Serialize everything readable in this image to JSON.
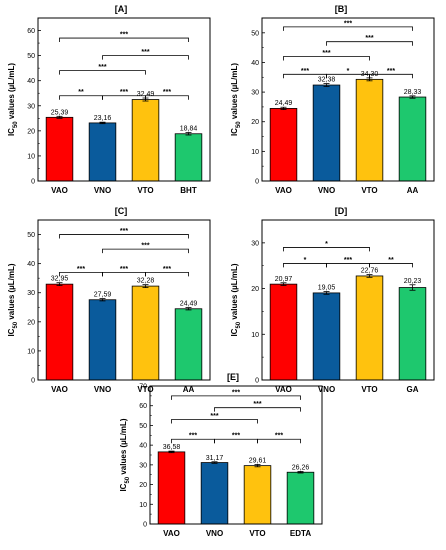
{
  "chart_data": [
    {
      "type": "bar",
      "title": "[A]",
      "ylabel_main": "IC",
      "ylabel_sub": "50",
      "ylabel_rest": " values (µL/mL)",
      "categories": [
        "VAO",
        "VNO",
        "VTO",
        "BHT"
      ],
      "values": [
        25.39,
        23.16,
        32.49,
        18.84
      ],
      "value_labels": [
        "25,39",
        "23,16",
        "32,49",
        "18,84"
      ],
      "errors": [
        0.4,
        0.3,
        0.6,
        0.5
      ],
      "colors": [
        "#ff0000",
        "#0a5b9c",
        "#ffc20e",
        "#1ec86e"
      ],
      "ylim": [
        0,
        65
      ],
      "yticks": [
        "0",
        "10",
        "20",
        "30",
        "40",
        "50",
        "60"
      ],
      "brackets": [
        {
          "from": 0,
          "to": 3,
          "level": 57,
          "label": "***"
        },
        {
          "from": 1,
          "to": 3,
          "level": 50,
          "label": "***"
        },
        {
          "from": 0,
          "to": 2,
          "level": 44,
          "label": "***"
        },
        {
          "from": 0,
          "to": 1,
          "level": 34,
          "label": "**"
        },
        {
          "from": 1,
          "to": 2,
          "level": 34,
          "label": "***"
        },
        {
          "from": 2,
          "to": 3,
          "level": 34,
          "label": "***"
        }
      ]
    },
    {
      "type": "bar",
      "title": "[B]",
      "ylabel_main": "IC",
      "ylabel_sub": "50",
      "ylabel_rest": " values (µL/mL)",
      "categories": [
        "VAO",
        "VNO",
        "VTO",
        "AA"
      ],
      "values": [
        24.49,
        32.38,
        34.3,
        28.33
      ],
      "value_labels": [
        "24,49",
        "32,38",
        "34,30",
        "28,33"
      ],
      "errors": [
        0.4,
        0.5,
        0.5,
        0.4
      ],
      "colors": [
        "#ff0000",
        "#0a5b9c",
        "#ffc20e",
        "#1ec86e"
      ],
      "ylim": [
        0,
        55
      ],
      "yticks": [
        "0",
        "10",
        "20",
        "30",
        "40",
        "50"
      ],
      "brackets": [
        {
          "from": 0,
          "to": 3,
          "level": 52,
          "label": "***"
        },
        {
          "from": 1,
          "to": 3,
          "level": 47,
          "label": "***"
        },
        {
          "from": 0,
          "to": 2,
          "level": 42,
          "label": "***"
        },
        {
          "from": 0,
          "to": 1,
          "level": 36,
          "label": "***"
        },
        {
          "from": 1,
          "to": 2,
          "level": 36,
          "label": "*"
        },
        {
          "from": 2,
          "to": 3,
          "level": 36,
          "label": "***"
        }
      ]
    },
    {
      "type": "bar",
      "title": "[C]",
      "ylabel_main": "IC",
      "ylabel_sub": "50",
      "ylabel_rest": " values (µL/mL)",
      "categories": [
        "VAO",
        "VNO",
        "VTO",
        "AA"
      ],
      "values": [
        32.95,
        27.59,
        32.28,
        24.49
      ],
      "value_labels": [
        "32,95",
        "27,59",
        "32,28",
        "24,49"
      ],
      "errors": [
        0.5,
        0.4,
        0.5,
        0.4
      ],
      "colors": [
        "#ff0000",
        "#0a5b9c",
        "#ffc20e",
        "#1ec86e"
      ],
      "ylim": [
        0,
        55
      ],
      "yticks": [
        "0",
        "10",
        "20",
        "30",
        "40",
        "50"
      ],
      "brackets": [
        {
          "from": 0,
          "to": 3,
          "level": 50,
          "label": "***"
        },
        {
          "from": 1,
          "to": 3,
          "level": 45,
          "label": "***"
        },
        {
          "from": 0,
          "to": 1,
          "level": 37,
          "label": "***"
        },
        {
          "from": 1,
          "to": 2,
          "level": 37,
          "label": "***"
        },
        {
          "from": 2,
          "to": 3,
          "level": 37,
          "label": "***"
        }
      ]
    },
    {
      "type": "bar",
      "title": "[D]",
      "ylabel_main": "IC",
      "ylabel_sub": "50",
      "ylabel_rest": " values (µL/mL)",
      "categories": [
        "VAO",
        "VNO",
        "VTO",
        "GA"
      ],
      "values": [
        20.97,
        19.05,
        22.76,
        20.23
      ],
      "value_labels": [
        "20,97",
        "19,05",
        "22,76",
        "20,23"
      ],
      "errors": [
        0.3,
        0.3,
        0.3,
        0.6
      ],
      "colors": [
        "#ff0000",
        "#0a5b9c",
        "#ffc20e",
        "#1ec86e"
      ],
      "ylim": [
        0,
        35
      ],
      "yticks": [
        "0",
        "10",
        "20",
        "30"
      ],
      "brackets": [
        {
          "from": 0,
          "to": 2,
          "level": 29,
          "label": "*"
        },
        {
          "from": 0,
          "to": 1,
          "level": 25.5,
          "label": "*"
        },
        {
          "from": 1,
          "to": 2,
          "level": 25.5,
          "label": "***"
        },
        {
          "from": 2,
          "to": 3,
          "level": 25.5,
          "label": "**"
        }
      ]
    },
    {
      "type": "bar",
      "title": "[E]",
      "ylabel_main": "IC",
      "ylabel_sub": "50",
      "ylabel_rest": " values (µL/mL)",
      "categories": [
        "VAO",
        "VNO",
        "VTO",
        "EDTA"
      ],
      "values": [
        36.58,
        31.17,
        29.61,
        26.26
      ],
      "value_labels": [
        "36,58",
        "31,17",
        "29,61",
        "26,26"
      ],
      "errors": [
        0.4,
        0.4,
        0.6,
        0.4
      ],
      "colors": [
        "#ff0000",
        "#0a5b9c",
        "#ffc20e",
        "#1ec86e"
      ],
      "ylim": [
        0,
        70
      ],
      "yticks": [
        "0",
        "10",
        "20",
        "30",
        "40",
        "50",
        "60",
        "70"
      ],
      "brackets": [
        {
          "from": 0,
          "to": 3,
          "level": 65,
          "label": "***"
        },
        {
          "from": 1,
          "to": 3,
          "level": 59,
          "label": "***"
        },
        {
          "from": 0,
          "to": 2,
          "level": 53,
          "label": "***"
        },
        {
          "from": 0,
          "to": 1,
          "level": 43,
          "label": "***"
        },
        {
          "from": 1,
          "to": 2,
          "level": 43,
          "label": "***"
        },
        {
          "from": 2,
          "to": 3,
          "level": 43,
          "label": "***"
        }
      ]
    }
  ]
}
